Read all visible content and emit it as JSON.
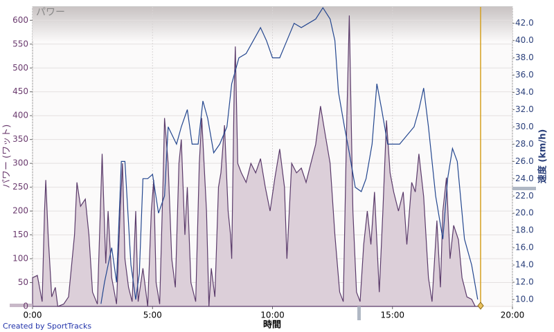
{
  "chart_data": {
    "type": "line",
    "panel_label": "パワー",
    "y_label": "パワー (ワット)",
    "y2_label": "速度 (km/h)",
    "x_label": "時間",
    "footer": "Created by SportTracks",
    "xlim": [
      0,
      20
    ],
    "xticks": [
      {
        "value": 0,
        "label": "0:00"
      },
      {
        "value": 5,
        "label": "5:00"
      },
      {
        "value": 10,
        "label": "10:00"
      },
      {
        "value": 15,
        "label": "15:00"
      },
      {
        "value": 20,
        "label": "20:00"
      }
    ],
    "ylim": [
      0,
      628
    ],
    "yticks": [
      0,
      50,
      100,
      150,
      200,
      250,
      300,
      350,
      400,
      450,
      500,
      550,
      600
    ],
    "y2lim": [
      9.2,
      43.9
    ],
    "y2ticks": [
      {
        "value": 10,
        "label": "10.0"
      },
      {
        "value": 12,
        "label": "12.0"
      },
      {
        "value": 14,
        "label": "14.0"
      },
      {
        "value": 16,
        "label": "16.0"
      },
      {
        "value": 18,
        "label": "18.0"
      },
      {
        "value": 20,
        "label": "20.0"
      },
      {
        "value": 22,
        "label": "22.0"
      },
      {
        "value": 24,
        "label": "24.0"
      },
      {
        "value": 26,
        "label": "26.0"
      },
      {
        "value": 28,
        "label": "28.0"
      },
      {
        "value": 30,
        "label": "30.0"
      },
      {
        "value": 32,
        "label": "32.0"
      },
      {
        "value": 34,
        "label": "34.0"
      },
      {
        "value": 36,
        "label": "36.0"
      },
      {
        "value": 38,
        "label": "38.0"
      },
      {
        "value": 40,
        "label": "40.0"
      },
      {
        "value": 42,
        "label": "42.0"
      }
    ],
    "grid": true,
    "series": [
      {
        "name": "パワー",
        "kind": "area",
        "color": "#5a3a6a",
        "fill": "#dccfd9",
        "x": [
          0,
          0.2,
          0.4,
          0.5,
          0.55,
          0.65,
          0.8,
          0.95,
          1.05,
          1.3,
          1.5,
          1.75,
          1.85,
          2.0,
          2.2,
          2.35,
          2.5,
          2.7,
          2.9,
          3.05,
          3.15,
          3.3,
          3.5,
          3.65,
          3.75,
          3.85,
          4.0,
          4.15,
          4.3,
          4.4,
          4.6,
          4.8,
          4.95,
          5.05,
          5.15,
          5.3,
          5.45,
          5.5,
          5.65,
          5.8,
          5.95,
          6.1,
          6.2,
          6.35,
          6.45,
          6.6,
          6.8,
          6.95,
          7.05,
          7.25,
          7.35,
          7.45,
          7.6,
          7.75,
          7.85,
          8.0,
          8.15,
          8.25,
          8.3,
          8.4,
          8.45,
          8.55,
          8.7,
          8.9,
          9.1,
          9.3,
          9.5,
          9.7,
          9.9,
          10.1,
          10.3,
          10.5,
          10.6,
          10.8,
          11.0,
          11.2,
          11.4,
          11.6,
          11.8,
          12.0,
          12.2,
          12.4,
          12.6,
          12.8,
          12.95,
          13.1,
          13.2,
          13.35,
          13.5,
          13.65,
          13.8,
          13.95,
          14.1,
          14.25,
          14.45,
          14.6,
          14.75,
          14.9,
          15.05,
          15.25,
          15.45,
          15.6,
          15.8,
          15.95,
          16.1,
          16.3,
          16.5,
          16.65,
          16.85,
          17.0,
          17.1,
          17.25,
          17.4,
          17.55,
          17.75,
          17.9,
          18.1,
          18.3,
          18.45,
          18.7
        ],
        "values": [
          60,
          65,
          10,
          200,
          265,
          150,
          20,
          40,
          0,
          5,
          20,
          150,
          260,
          210,
          225,
          150,
          30,
          5,
          320,
          90,
          200,
          60,
          5,
          200,
          300,
          100,
          40,
          10,
          200,
          10,
          80,
          0,
          200,
          265,
          50,
          5,
          280,
          395,
          300,
          100,
          40,
          300,
          350,
          150,
          250,
          50,
          10,
          300,
          395,
          200,
          0,
          80,
          20,
          250,
          280,
          380,
          200,
          150,
          100,
          450,
          545,
          300,
          280,
          260,
          300,
          280,
          310,
          250,
          200,
          270,
          330,
          250,
          100,
          300,
          280,
          290,
          260,
          300,
          340,
          420,
          360,
          300,
          150,
          30,
          10,
          400,
          610,
          200,
          30,
          10,
          130,
          200,
          130,
          240,
          30,
          200,
          390,
          280,
          240,
          200,
          240,
          130,
          260,
          240,
          320,
          230,
          60,
          10,
          180,
          40,
          200,
          270,
          100,
          170,
          140,
          60,
          20,
          15,
          0,
          0
        ]
      },
      {
        "name": "速度",
        "kind": "line",
        "axis": "y2",
        "color": "#23468f",
        "x": [
          2.85,
          3.0,
          3.3,
          3.5,
          3.7,
          3.85,
          4.1,
          4.3,
          4.45,
          4.6,
          4.8,
          5.0,
          5.25,
          5.5,
          5.65,
          6.0,
          6.2,
          6.45,
          6.65,
          6.9,
          7.1,
          7.3,
          7.55,
          7.8,
          8.1,
          8.3,
          8.6,
          8.9,
          9.2,
          9.5,
          9.75,
          10.0,
          10.3,
          10.6,
          10.9,
          11.2,
          11.5,
          11.8,
          12.1,
          12.4,
          12.6,
          12.75,
          13.0,
          13.2,
          13.45,
          13.7,
          13.9,
          14.15,
          14.35,
          14.55,
          14.8,
          15.0,
          15.3,
          15.6,
          15.9,
          16.1,
          16.3,
          16.5,
          16.8,
          17.1,
          17.3,
          17.5,
          17.7,
          18.0,
          18.3,
          18.55
        ],
        "values": [
          9.5,
          12,
          16,
          12,
          26,
          26,
          14,
          10,
          13,
          24,
          24,
          24.5,
          20,
          22,
          30,
          28,
          30,
          32,
          28,
          28,
          33,
          31,
          27,
          28,
          30,
          35,
          38,
          38.5,
          40,
          41.5,
          40,
          38,
          38,
          40,
          42,
          41.5,
          42,
          42.5,
          43.8,
          42.5,
          40,
          34,
          30,
          27,
          23,
          22.5,
          24,
          28,
          35,
          32,
          28,
          28,
          28,
          29,
          30,
          32,
          34.5,
          30,
          22,
          17,
          24,
          27.5,
          26,
          17,
          14,
          10
        ]
      }
    ]
  }
}
